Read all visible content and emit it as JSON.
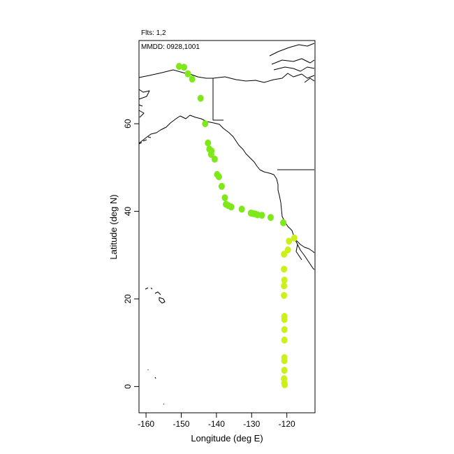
{
  "header": {
    "flights_label": "Flts: 1,2",
    "dates_label": "MMDD: 0928,1001"
  },
  "chart_data": {
    "type": "scatter",
    "xlabel": "Longitude (deg E)",
    "ylabel": "Latitude (deg N)",
    "xlim": [
      -162,
      -112
    ],
    "ylim": [
      -6,
      79
    ],
    "xticks": [
      -160,
      -150,
      -140,
      -130,
      -120
    ],
    "yticks": [
      0,
      20,
      40,
      60
    ],
    "grid": false,
    "series": [
      {
        "color": "#7FE81A",
        "points": [
          [
            -150.6,
            73.1
          ],
          [
            -149.2,
            72.9
          ],
          [
            -148.1,
            71.4
          ],
          [
            -146.9,
            70.2
          ],
          [
            -144.5,
            65.8
          ],
          [
            -143.2,
            60.0
          ],
          [
            -142.4,
            55.6
          ],
          [
            -142.0,
            54.2
          ],
          [
            -141.4,
            53.8
          ],
          [
            -141.5,
            53.0
          ],
          [
            -140.5,
            51.9
          ],
          [
            -139.8,
            48.4
          ],
          [
            -139.3,
            47.9
          ],
          [
            -138.5,
            45.7
          ],
          [
            -137.6,
            43.1
          ],
          [
            -137.3,
            41.6
          ],
          [
            -136.6,
            41.3
          ],
          [
            -135.8,
            41.0
          ],
          [
            -132.8,
            40.5
          ],
          [
            -130.2,
            39.6
          ],
          [
            -129.6,
            39.5
          ],
          [
            -128.9,
            39.4
          ],
          [
            -128.3,
            39.2
          ],
          [
            -127.1,
            39.1
          ],
          [
            -124.6,
            38.6
          ],
          [
            -121.0,
            37.4
          ]
        ]
      },
      {
        "color": "#CCF01A",
        "points": [
          [
            -117.9,
            33.9
          ],
          [
            -119.4,
            33.2
          ],
          [
            -119.7,
            31.2
          ],
          [
            -120.8,
            30.2
          ],
          [
            -120.8,
            26.8
          ],
          [
            -120.7,
            24.3
          ],
          [
            -120.8,
            23.0
          ],
          [
            -120.8,
            20.8
          ],
          [
            -120.7,
            16.0
          ],
          [
            -120.7,
            15.3
          ],
          [
            -120.7,
            13.0
          ],
          [
            -120.7,
            10.6
          ],
          [
            -120.7,
            6.6
          ],
          [
            -120.7,
            5.9
          ],
          [
            -120.7,
            3.7
          ],
          [
            -120.8,
            1.8
          ],
          [
            -120.7,
            0.8
          ],
          [
            -120.6,
            0.4
          ]
        ]
      }
    ]
  }
}
